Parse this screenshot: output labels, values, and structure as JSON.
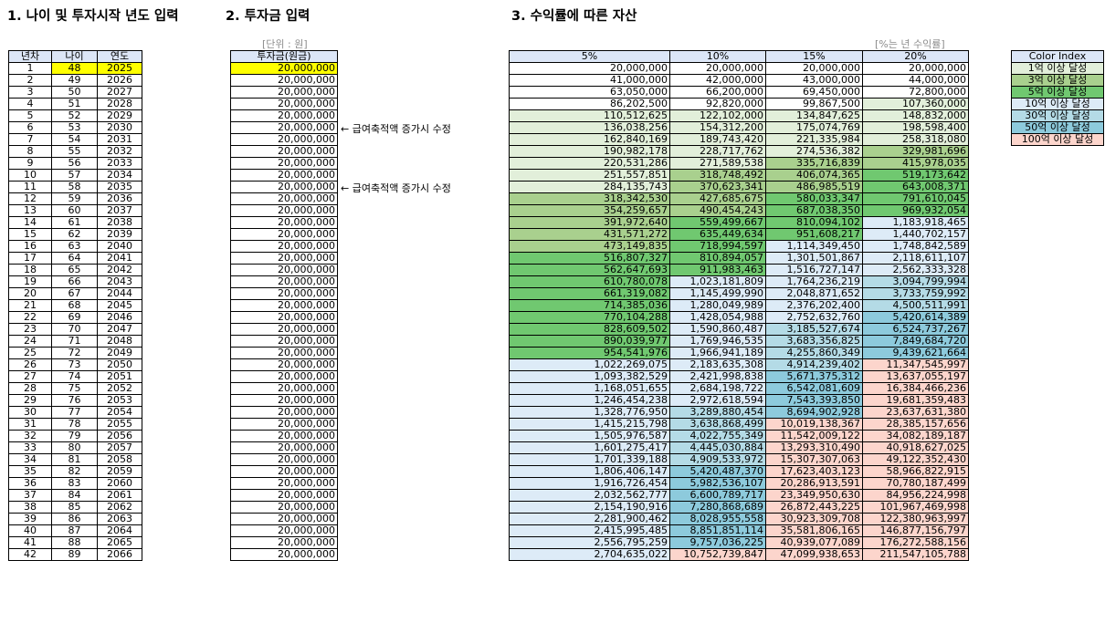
{
  "headings": {
    "section1": "1. 나이 및 투자시작 년도 입력",
    "section2": "2. 투자금 입력",
    "section3": "3. 수익률에 따른 자산"
  },
  "unit_labels": {
    "investment": "[단위 : 원]",
    "returns": "[%는 년 수익률]"
  },
  "left_table": {
    "headers": [
      "년차",
      "나이",
      "연도"
    ],
    "start_age": 48,
    "start_year": 2025,
    "rows": 42
  },
  "investment_table": {
    "header": "투자금(원금)",
    "value": "20,000,000"
  },
  "notes": [
    {
      "row": 6,
      "text": "← 급여축적액 증가시 수정"
    },
    {
      "row": 11,
      "text": "← 급여축적액 증가시 수정"
    }
  ],
  "returns_table": {
    "headers": [
      "5%",
      "10%",
      "15%",
      "20%"
    ],
    "columns": [
      [
        "20,000,000",
        "41,000,000",
        "63,050,000",
        "86,202,500",
        "110,512,625",
        "136,038,256",
        "162,840,169",
        "190,982,178",
        "220,531,286",
        "251,557,851",
        "284,135,743",
        "318,342,530",
        "354,259,657",
        "391,972,640",
        "431,571,272",
        "473,149,835",
        "516,807,327",
        "562,647,693",
        "610,780,078",
        "661,319,082",
        "714,385,036",
        "770,104,288",
        "828,609,502",
        "890,039,977",
        "954,541,976",
        "1,022,269,075",
        "1,093,382,529",
        "1,168,051,655",
        "1,246,454,238",
        "1,328,776,950",
        "1,415,215,798",
        "1,505,976,587",
        "1,601,275,417",
        "1,701,339,188",
        "1,806,406,147",
        "1,916,726,454",
        "2,032,562,777",
        "2,154,190,916",
        "2,281,900,462",
        "2,415,995,485",
        "2,556,795,259",
        "2,704,635,022"
      ],
      [
        "20,000,000",
        "42,000,000",
        "66,200,000",
        "92,820,000",
        "122,102,000",
        "154,312,200",
        "189,743,420",
        "228,717,762",
        "271,589,538",
        "318,748,492",
        "370,623,341",
        "427,685,675",
        "490,454,243",
        "559,499,667",
        "635,449,634",
        "718,994,597",
        "810,894,057",
        "911,983,463",
        "1,023,181,809",
        "1,145,499,990",
        "1,280,049,989",
        "1,428,054,988",
        "1,590,860,487",
        "1,769,946,535",
        "1,966,941,189",
        "2,183,635,308",
        "2,421,998,838",
        "2,684,198,722",
        "2,972,618,594",
        "3,289,880,454",
        "3,638,868,499",
        "4,022,755,349",
        "4,445,030,884",
        "4,909,533,972",
        "5,420,487,370",
        "5,982,536,107",
        "6,600,789,717",
        "7,280,868,689",
        "8,028,955,558",
        "8,851,851,114",
        "9,757,036,225",
        "10,752,739,847"
      ],
      [
        "20,000,000",
        "43,000,000",
        "69,450,000",
        "99,867,500",
        "134,847,625",
        "175,074,769",
        "221,335,984",
        "274,536,382",
        "335,716,839",
        "406,074,365",
        "486,985,519",
        "580,033,347",
        "687,038,350",
        "810,094,102",
        "951,608,217",
        "1,114,349,450",
        "1,301,501,867",
        "1,516,727,147",
        "1,764,236,219",
        "2,048,871,652",
        "2,376,202,400",
        "2,752,632,760",
        "3,185,527,674",
        "3,683,356,825",
        "4,255,860,349",
        "4,914,239,402",
        "5,671,375,312",
        "6,542,081,609",
        "7,543,393,850",
        "8,694,902,928",
        "10,019,138,367",
        "11,542,009,122",
        "13,293,310,490",
        "15,307,307,063",
        "17,623,403,123",
        "20,286,913,591",
        "23,349,950,630",
        "26,872,443,225",
        "30,923,309,708",
        "35,581,806,165",
        "40,939,077,089",
        "47,099,938,653"
      ],
      [
        "20,000,000",
        "44,000,000",
        "72,800,000",
        "107,360,000",
        "148,832,000",
        "198,598,400",
        "258,318,080",
        "329,981,696",
        "415,978,035",
        "519,173,642",
        "643,008,371",
        "791,610,045",
        "969,932,054",
        "1,183,918,465",
        "1,440,702,157",
        "1,748,842,589",
        "2,118,611,107",
        "2,562,333,328",
        "3,094,799,994",
        "3,733,759,992",
        "4,500,511,991",
        "5,420,614,389",
        "6,524,737,267",
        "7,849,684,720",
        "9,439,621,664",
        "11,347,545,997",
        "13,637,055,197",
        "16,384,466,236",
        "19,681,359,483",
        "23,637,631,380",
        "28,385,157,656",
        "34,082,189,187",
        "40,918,627,025",
        "49,122,352,430",
        "58,966,822,915",
        "70,780,187,499",
        "84,956,224,998",
        "101,967,469,998",
        "122,380,963,997",
        "146,877,156,797",
        "176,272,588,156",
        "211,547,105,788"
      ]
    ]
  },
  "color_index": {
    "title": "Color Index",
    "items": [
      {
        "label": "1억 이상 달성",
        "color": "#e2efda"
      },
      {
        "label": "3억 이상 달성",
        "color": "#a9d08e"
      },
      {
        "label": "5억 이상 달성",
        "color": "#70c870"
      },
      {
        "label": "10억 이상 달성",
        "color": "#ddebf7"
      },
      {
        "label": "30억 이상 달성",
        "color": "#b4dbe6"
      },
      {
        "label": "50억 이상 달성",
        "color": "#8dcadc"
      },
      {
        "label": "100억 이상 달성",
        "color": "#fcd5cc"
      }
    ]
  },
  "colors": {
    "header_bg": "#dce6f7",
    "highlight": "#ffff00",
    "unit_text": "#8c8c8c"
  }
}
